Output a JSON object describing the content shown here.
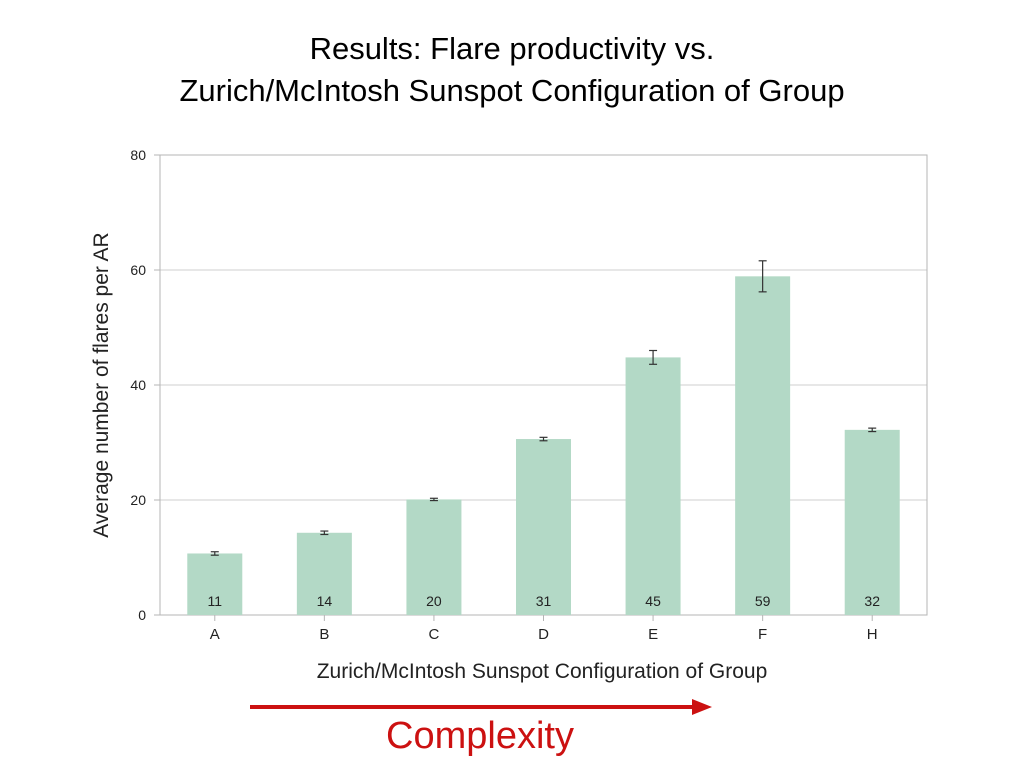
{
  "slide": {
    "title_line1": "Results: Flare productivity vs.",
    "title_line2": "Zurich/McIntosh Sunspot Configuration of Group",
    "complexity_label": "Complexity",
    "accent_color": "#cc1111"
  },
  "chart_data": {
    "type": "bar",
    "categories": [
      "A",
      "B",
      "C",
      "D",
      "E",
      "F",
      "H"
    ],
    "values": [
      10.7,
      14.3,
      20.1,
      30.6,
      44.8,
      58.9,
      32.2
    ],
    "error": [
      0.3,
      0.3,
      0.2,
      0.3,
      1.2,
      2.7,
      0.3
    ],
    "bar_labels": [
      "11",
      "14",
      "20",
      "31",
      "45",
      "59",
      "32"
    ],
    "xlabel": "Zurich/McIntosh Sunspot Configuration of Group",
    "ylabel": "Average number of flares per AR",
    "ylim": [
      0,
      80
    ],
    "yticks": [
      0,
      20,
      40,
      60,
      80
    ],
    "grid": true,
    "bar_color": "#b3d9c6"
  }
}
